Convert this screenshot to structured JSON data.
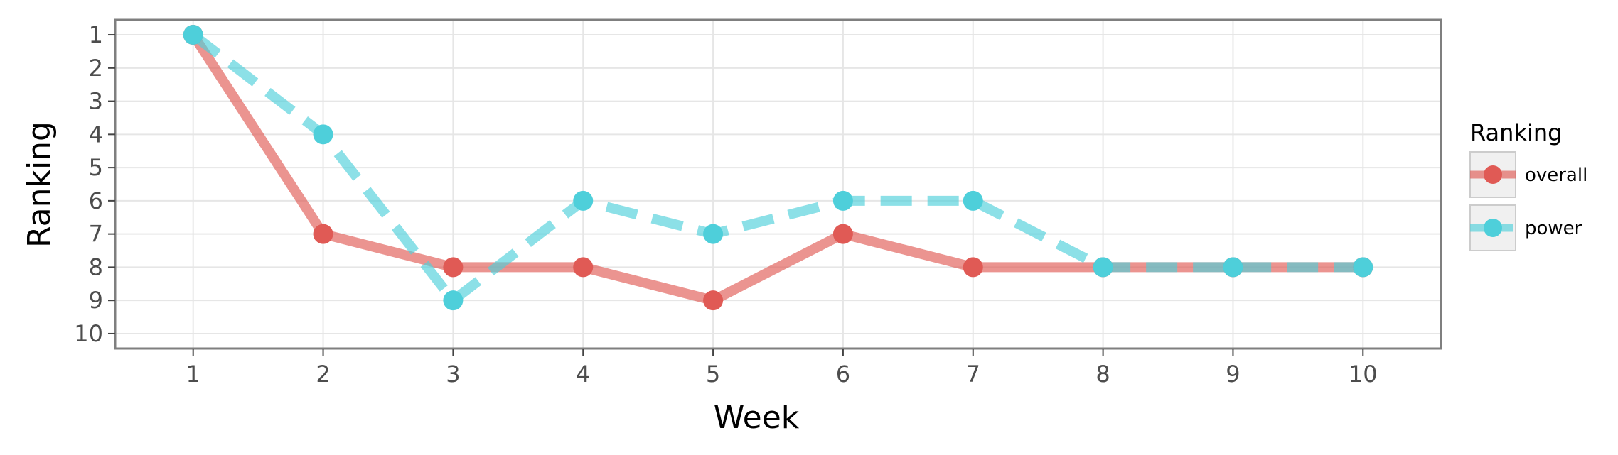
{
  "chart_data": {
    "type": "line",
    "xlabel": "Week",
    "ylabel": "Ranking",
    "x": [
      1,
      2,
      3,
      4,
      5,
      6,
      7,
      8,
      9,
      10
    ],
    "xlim": [
      0.4,
      10.6
    ],
    "ylim": [
      10.45,
      0.55
    ],
    "y_reversed": true,
    "x_ticks": [
      "1",
      "2",
      "3",
      "4",
      "5",
      "6",
      "7",
      "8",
      "9",
      "10"
    ],
    "y_ticks": [
      "1",
      "2",
      "3",
      "4",
      "5",
      "6",
      "7",
      "8",
      "9",
      "10"
    ],
    "grid": true,
    "legend": {
      "title": "Ranking",
      "position": "right"
    },
    "series": [
      {
        "name": "overall",
        "color": "#e05a55",
        "line_style": "solid",
        "values": [
          1,
          7,
          8,
          8,
          9,
          7,
          8,
          8,
          8,
          8
        ]
      },
      {
        "name": "power",
        "color": "#4ecfda",
        "line_style": "dashed",
        "values": [
          1,
          4,
          9,
          6,
          7,
          6,
          6,
          8,
          8,
          8
        ]
      }
    ]
  }
}
